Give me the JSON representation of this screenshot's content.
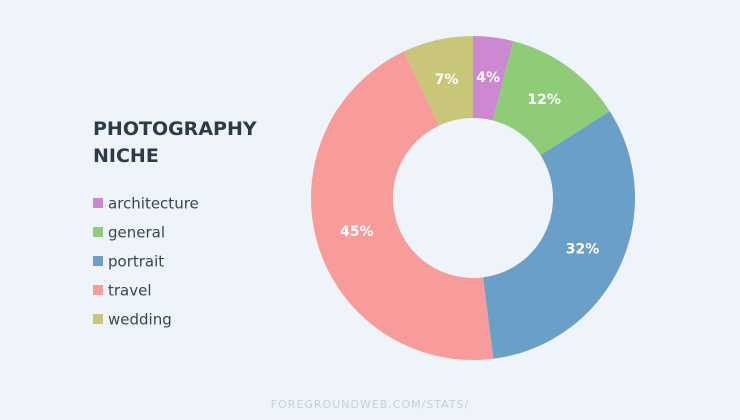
{
  "chart_data": {
    "type": "donut",
    "title": "PHOTOGRAPHY NICHE",
    "categories": [
      "architecture",
      "general",
      "portrait",
      "travel",
      "wedding"
    ],
    "values": [
      4,
      12,
      32,
      45,
      7
    ],
    "value_labels": [
      "4%",
      "12%",
      "32%",
      "45%",
      "7%"
    ],
    "colors": [
      "#cc88d1",
      "#8fcc77",
      "#6a9fc7",
      "#f79b9b",
      "#c9c67a"
    ],
    "legend": "left",
    "source": "FOREGROUNDWEB.COM/STATS/"
  }
}
